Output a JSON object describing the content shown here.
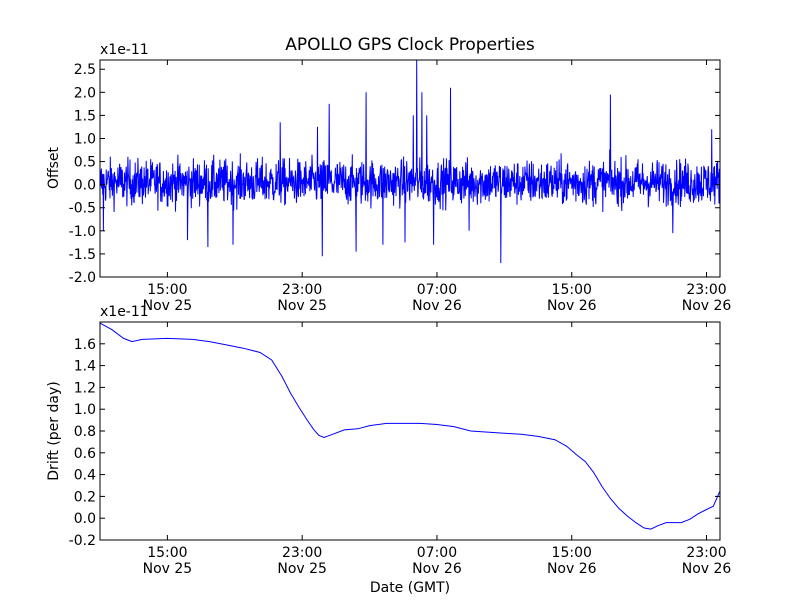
{
  "chart_data": [
    {
      "type": "line",
      "title": "APOLLO GPS Clock Properties",
      "ylabel": "Offset",
      "xlabel": "",
      "scale_label": "x1e-11",
      "ylim": [
        -2.0,
        2.7
      ],
      "yticks": [
        -2.0,
        -1.5,
        -1.0,
        -0.5,
        0.0,
        0.5,
        1.0,
        1.5,
        2.0,
        2.5
      ],
      "ytick_labels": [
        "-2.0",
        "-1.5",
        "-1.0",
        "-0.5",
        "0.0",
        "0.5",
        "1.0",
        "1.5",
        "2.0",
        "2.5"
      ],
      "xlim_hours": [
        11.0,
        47.8
      ],
      "xticks": [
        {
          "hour": 15,
          "time": "15:00",
          "date": "Nov 25"
        },
        {
          "hour": 23,
          "time": "23:00",
          "date": "Nov 25"
        },
        {
          "hour": 31,
          "time": "07:00",
          "date": "Nov 26"
        },
        {
          "hour": 39,
          "time": "15:00",
          "date": "Nov 26"
        },
        {
          "hour": 47,
          "time": "23:00",
          "date": "Nov 26"
        }
      ],
      "series_color": "#0000ff",
      "grid": false,
      "noise": {
        "samples": 1800,
        "baseline": 0.05,
        "amplitude": 0.35
      },
      "spikes": [
        {
          "hour": 11.2,
          "value": -1.0
        },
        {
          "hour": 16.2,
          "value": -1.2
        },
        {
          "hour": 17.4,
          "value": -1.35
        },
        {
          "hour": 18.9,
          "value": -1.3
        },
        {
          "hour": 21.7,
          "value": 1.35
        },
        {
          "hour": 23.9,
          "value": 1.25
        },
        {
          "hour": 24.2,
          "value": -1.55
        },
        {
          "hour": 24.6,
          "value": 1.75
        },
        {
          "hour": 26.2,
          "value": -1.45
        },
        {
          "hour": 26.8,
          "value": 2.0
        },
        {
          "hour": 27.8,
          "value": -1.3
        },
        {
          "hour": 29.1,
          "value": -1.25
        },
        {
          "hour": 29.6,
          "value": 1.5
        },
        {
          "hour": 29.8,
          "value": 2.7
        },
        {
          "hour": 30.1,
          "value": 2.0
        },
        {
          "hour": 30.4,
          "value": 1.5
        },
        {
          "hour": 30.8,
          "value": -1.3
        },
        {
          "hour": 31.8,
          "value": 2.1
        },
        {
          "hour": 32.9,
          "value": -1.0
        },
        {
          "hour": 34.8,
          "value": -1.7
        },
        {
          "hour": 41.3,
          "value": 1.95
        },
        {
          "hour": 45.0,
          "value": -1.05
        },
        {
          "hour": 47.3,
          "value": 1.2
        }
      ]
    },
    {
      "type": "line",
      "title": "",
      "ylabel": "Drift (per day)",
      "xlabel": "Date (GMT)",
      "scale_label": "x1e-11",
      "ylim": [
        -0.2,
        1.8
      ],
      "yticks": [
        -0.2,
        0.0,
        0.2,
        0.4,
        0.6,
        0.8,
        1.0,
        1.2,
        1.4,
        1.6
      ],
      "ytick_labels": [
        "-0.2",
        "0.0",
        "0.2",
        "0.4",
        "0.6",
        "0.8",
        "1.0",
        "1.2",
        "1.4",
        "1.6"
      ],
      "xlim_hours": [
        11.0,
        47.8
      ],
      "xticks": [
        {
          "hour": 15,
          "time": "15:00",
          "date": "Nov 25"
        },
        {
          "hour": 23,
          "time": "23:00",
          "date": "Nov 25"
        },
        {
          "hour": 31,
          "time": "07:00",
          "date": "Nov 26"
        },
        {
          "hour": 39,
          "time": "15:00",
          "date": "Nov 26"
        },
        {
          "hour": 47,
          "time": "23:00",
          "date": "Nov 26"
        }
      ],
      "series_color": "#0000ff",
      "grid": false,
      "points": [
        [
          11.0,
          1.79
        ],
        [
          11.7,
          1.73
        ],
        [
          12.4,
          1.65
        ],
        [
          12.9,
          1.62
        ],
        [
          13.5,
          1.64
        ],
        [
          15.0,
          1.65
        ],
        [
          16.5,
          1.64
        ],
        [
          17.5,
          1.62
        ],
        [
          18.5,
          1.59
        ],
        [
          19.5,
          1.56
        ],
        [
          20.5,
          1.52
        ],
        [
          21.2,
          1.45
        ],
        [
          21.8,
          1.3
        ],
        [
          22.3,
          1.15
        ],
        [
          22.8,
          1.02
        ],
        [
          23.3,
          0.9
        ],
        [
          23.7,
          0.81
        ],
        [
          24.0,
          0.76
        ],
        [
          24.3,
          0.74
        ],
        [
          24.8,
          0.77
        ],
        [
          25.5,
          0.81
        ],
        [
          26.3,
          0.82
        ],
        [
          27.0,
          0.85
        ],
        [
          28.0,
          0.87
        ],
        [
          29.0,
          0.87
        ],
        [
          30.0,
          0.87
        ],
        [
          31.0,
          0.86
        ],
        [
          32.0,
          0.84
        ],
        [
          33.0,
          0.8
        ],
        [
          34.0,
          0.79
        ],
        [
          35.0,
          0.78
        ],
        [
          36.0,
          0.77
        ],
        [
          37.0,
          0.75
        ],
        [
          38.0,
          0.72
        ],
        [
          38.7,
          0.66
        ],
        [
          39.3,
          0.58
        ],
        [
          39.8,
          0.52
        ],
        [
          40.3,
          0.42
        ],
        [
          40.8,
          0.29
        ],
        [
          41.3,
          0.18
        ],
        [
          41.8,
          0.09
        ],
        [
          42.3,
          0.02
        ],
        [
          42.8,
          -0.04
        ],
        [
          43.3,
          -0.09
        ],
        [
          43.7,
          -0.1
        ],
        [
          44.1,
          -0.07
        ],
        [
          44.6,
          -0.04
        ],
        [
          45.5,
          -0.04
        ],
        [
          46.0,
          -0.01
        ],
        [
          46.5,
          0.04
        ],
        [
          47.0,
          0.08
        ],
        [
          47.4,
          0.11
        ],
        [
          47.8,
          0.25
        ]
      ]
    }
  ]
}
